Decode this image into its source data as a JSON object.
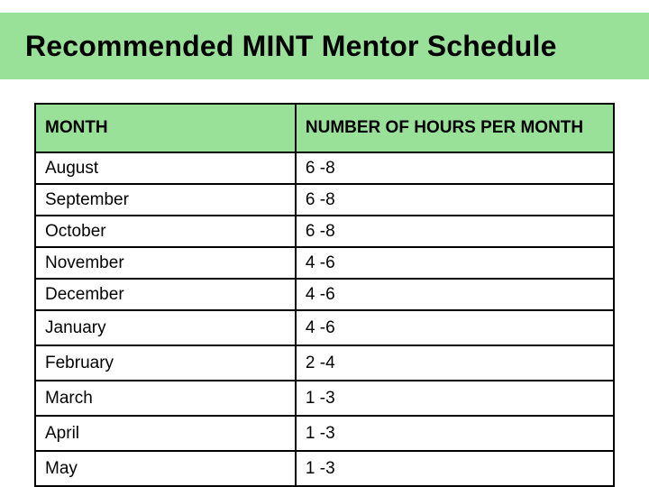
{
  "colors": {
    "band_bg": "#99e199",
    "header_bg": "#99e199",
    "page_bg": "#ffffff",
    "cell_bg": "#ffffff",
    "text": "#000000",
    "border": "#000000"
  },
  "title": "Recommended MINT Mentor Schedule",
  "table": {
    "columns": [
      "MONTH",
      "NUMBER OF HOURS PER MONTH"
    ],
    "column_widths_pct": [
      45,
      55
    ],
    "header_fontsize": 19,
    "cell_fontsize": 19,
    "rows": [
      {
        "month": "August",
        "hours": "6 -8",
        "gap": false
      },
      {
        "month": "September",
        "hours": "6 -8",
        "gap": false
      },
      {
        "month": "October",
        "hours": "6 -8",
        "gap": false
      },
      {
        "month": "November",
        "hours": "4 -6",
        "gap": false
      },
      {
        "month": "December",
        "hours": "4 -6",
        "gap": false
      },
      {
        "month": "January",
        "hours": "4 -6",
        "gap": true
      },
      {
        "month": "February",
        "hours": "2 -4",
        "gap": true
      },
      {
        "month": "March",
        "hours": "1 -3",
        "gap": true
      },
      {
        "month": "April",
        "hours": "1 -3",
        "gap": true
      },
      {
        "month": "May",
        "hours": "1 -3",
        "gap": true
      }
    ]
  }
}
